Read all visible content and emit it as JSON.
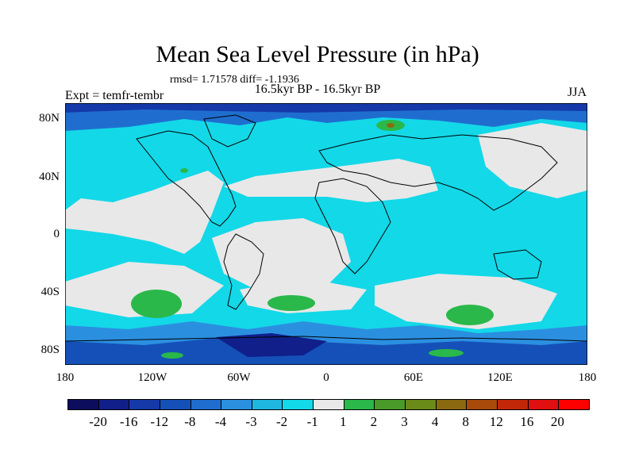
{
  "title": "Mean Sea Level Pressure (in hPa)",
  "stats": "rmsd= 1.71578 diff= -1.1936",
  "experiment": "Expt = temfr-tembr",
  "period": "16.5kyr BP - 16.5kyr BP",
  "season": "JJA",
  "lat_labels": [
    "80N",
    "40N",
    "0",
    "40S",
    "80S"
  ],
  "lon_labels": [
    "180",
    "120W",
    "60W",
    "0",
    "60E",
    "120E",
    "180"
  ],
  "colorbar": {
    "labels": [
      "-20",
      "-16",
      "-12",
      "-8",
      "-4",
      "-3",
      "-2",
      "-1",
      "1",
      "2",
      "3",
      "4",
      "8",
      "12",
      "16",
      "20"
    ],
    "colors": [
      "#0d0d5e",
      "#101f8a",
      "#1539a8",
      "#1550b8",
      "#1f6ecf",
      "#2b8fe0",
      "#1fb6e0",
      "#13d8e8",
      "#e8e8e8",
      "#2ab84a",
      "#4a9a2a",
      "#6a8a1a",
      "#8a6a10",
      "#a84a0a",
      "#c22808",
      "#e01010",
      "#ff0000"
    ]
  },
  "legend_note": "contour bins between labels"
}
